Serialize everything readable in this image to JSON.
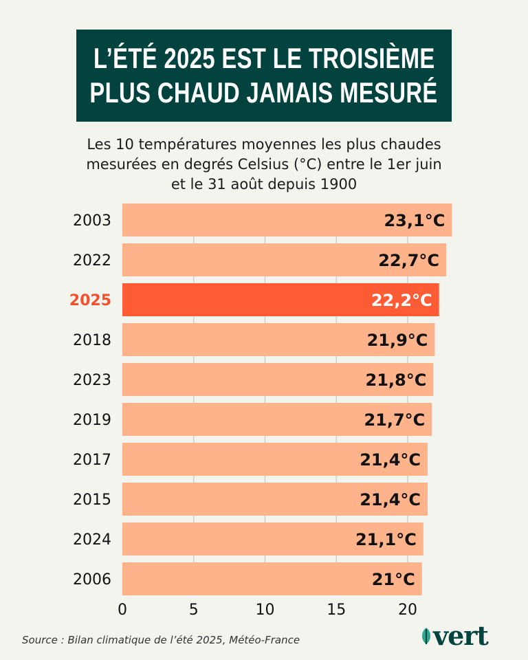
{
  "title_lines": [
    "L’ÉTÉ 2025 EST LE TROISIÈME",
    "PLUS CHAUD JAMAIS MESURÉ"
  ],
  "subtitle_lines": [
    "Les 10 températures moyennes les plus chaudes",
    "mesurées en degrés Celsius (°C) entre le 1er juin",
    "et le 31 août depuis 1900"
  ],
  "source": "Source : Bilan climatique de l’été 2025, Météo-France",
  "logo": "vert",
  "colors": {
    "background": "#f4f4ef",
    "title_bg": "#03433f",
    "bar": "#ffb38a",
    "highlight_bar": "#ff5c36",
    "highlight_label": "#f4502d"
  },
  "chart_data": {
    "type": "bar",
    "orientation": "horizontal",
    "categories": [
      "2003",
      "2022",
      "2025",
      "2018",
      "2023",
      "2019",
      "2017",
      "2015",
      "2024",
      "2006"
    ],
    "values": [
      23.1,
      22.7,
      22.2,
      21.9,
      21.8,
      21.7,
      21.4,
      21.4,
      21.1,
      21.0
    ],
    "data_labels": [
      "23,1°C",
      "22,7°C",
      "22,2°C",
      "21,9°C",
      "21,8°C",
      "21,7°C",
      "21,4°C",
      "21,4°C",
      "21,1°C",
      "21°C"
    ],
    "highlight": "2025",
    "xlim": [
      0,
      23.1
    ],
    "xticks": [
      "0",
      "5",
      "10",
      "15",
      "20"
    ],
    "grid": "vertical",
    "title": "",
    "xlabel": "",
    "ylabel": ""
  }
}
